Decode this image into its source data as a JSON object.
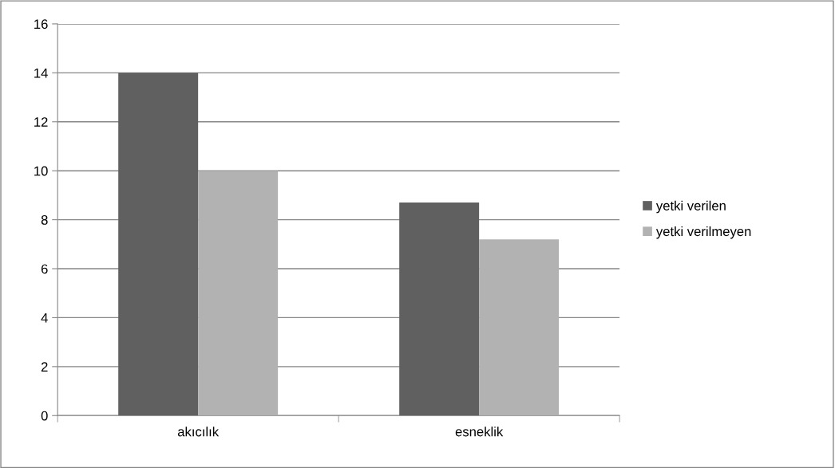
{
  "chart_data": {
    "type": "bar",
    "categories": [
      "akıcılık",
      "esneklik"
    ],
    "series": [
      {
        "name": "yetki verilen",
        "color": "#606060",
        "values": [
          14,
          8.7
        ]
      },
      {
        "name": "yetki verilmeyen",
        "color": "#b2b2b2",
        "values": [
          10,
          7.2
        ]
      }
    ],
    "ylim": [
      0,
      16
    ],
    "yticks": [
      0,
      2,
      4,
      6,
      8,
      10,
      12,
      14,
      16
    ],
    "grid": "y",
    "legend": "right"
  }
}
